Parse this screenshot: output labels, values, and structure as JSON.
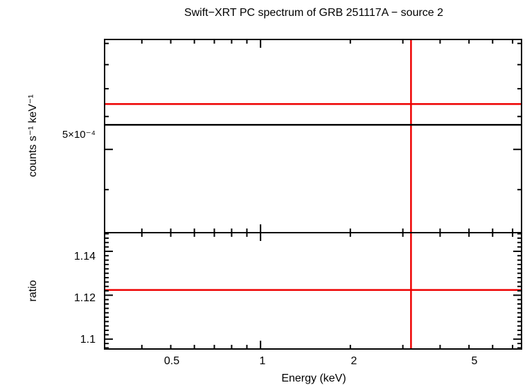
{
  "chart_data": [
    {
      "type": "line",
      "panel": "spectrum",
      "title": "Swift−XRT PC spectrum of GRB 251117A − source 2",
      "ylabel": "counts s⁻¹ keV⁻¹",
      "y_tick_labels": [
        "5×10⁻⁴"
      ],
      "x_scale": "log",
      "y_scale": "log",
      "xlim": [
        0.3,
        7.5
      ],
      "ylim": [
        0.000315,
        0.00092
      ],
      "series": [
        {
          "kind": "data",
          "color": "#ee0000",
          "x": [
            0.3,
            7.5
          ],
          "y": [
            0.000643,
            0.000643
          ],
          "x_error": [
            [
              0.3,
              7.5
            ]
          ],
          "y_error": [
            [
              0.000315,
              0.00092
            ]
          ]
        },
        {
          "kind": "model",
          "color": "#000000",
          "x": [
            0.3,
            7.5
          ],
          "y": [
            0.000573,
            0.000573
          ]
        }
      ]
    },
    {
      "type": "line",
      "panel": "ratio",
      "ylabel": "ratio",
      "xlabel": "Energy (keV)",
      "x_tick_labels": [
        "0.5",
        "1",
        "2",
        "5"
      ],
      "y_tick_labels": [
        "1.14",
        "1.12",
        "1.1"
      ],
      "x_scale": "log",
      "xlim": [
        0.3,
        7.5
      ],
      "ylim": [
        1.0955,
        1.1485
      ],
      "series": [
        {
          "kind": "ratio",
          "color": "#ee0000",
          "x": [
            0.3,
            7.5
          ],
          "y": [
            1.1224,
            1.1224
          ],
          "x_error": [
            [
              0.3,
              7.5
            ]
          ],
          "y_error": [
            [
              1.0955,
              1.1485
            ]
          ]
        }
      ]
    }
  ]
}
